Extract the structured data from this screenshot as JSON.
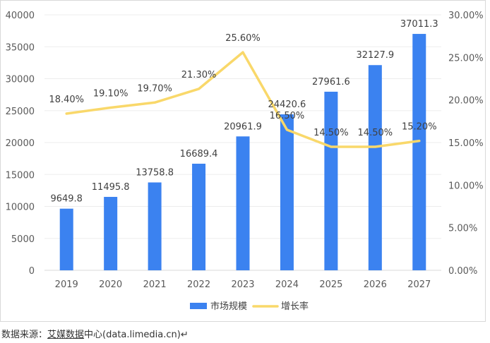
{
  "chart_data": {
    "type": "bar",
    "categories": [
      "2019",
      "2020",
      "2021",
      "2022",
      "2023",
      "2024",
      "2025",
      "2026",
      "2027"
    ],
    "series": [
      {
        "name": "市场规模",
        "type": "bar",
        "axis": "left",
        "color": "#3b82f0",
        "values": [
          9649.8,
          11495.8,
          13758.8,
          16689.4,
          20961.9,
          24420.6,
          27961.6,
          32127.9,
          37011.3
        ],
        "labels": [
          "9649.8",
          "11495.8",
          "13758.8",
          "16689.4",
          "20961.9",
          "24420.6",
          "27961.6",
          "32127.9",
          "37011.3"
        ]
      },
      {
        "name": "增长率",
        "type": "line",
        "axis": "right",
        "color": "#f9d86a",
        "values": [
          18.4,
          19.1,
          19.7,
          21.3,
          25.6,
          16.5,
          14.5,
          14.5,
          15.2
        ],
        "labels": [
          "18.40%",
          "19.10%",
          "19.70%",
          "21.30%",
          "25.60%",
          "16.50%",
          "14.50%",
          "14.50%",
          "15.20%"
        ]
      }
    ],
    "y_left": {
      "min": 0,
      "max": 40000,
      "ticks": [
        "0",
        "5000",
        "10000",
        "15000",
        "20000",
        "25000",
        "30000",
        "35000",
        "40000"
      ]
    },
    "y_right": {
      "min": 0,
      "max": 30,
      "ticks": [
        "0.00%",
        "5.00%",
        "10.00%",
        "15.00%",
        "20.00%",
        "25.00%",
        "30.00%"
      ]
    },
    "grid": true,
    "legend": "bottom"
  },
  "source": {
    "prefix": "数据来源：",
    "link": "艾媒数据",
    "suffix": "中心(data.limedia.cn)↵"
  }
}
